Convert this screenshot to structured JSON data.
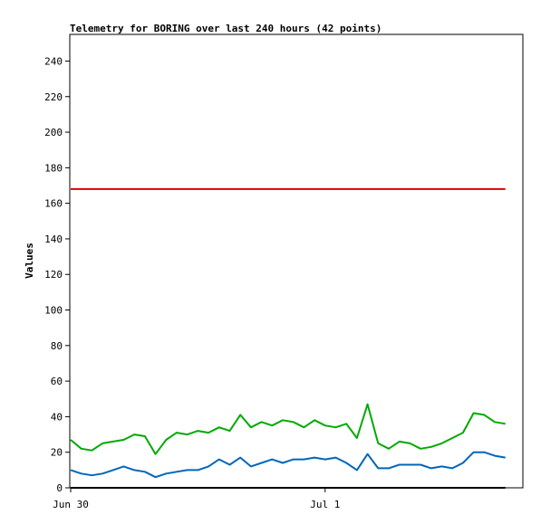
{
  "chart_data": {
    "type": "line",
    "title": "Telemetry for BORING over last 240 hours (42 points)",
    "xlabel": "",
    "ylabel": "Values",
    "ylim": [
      0,
      255
    ],
    "yticks": [
      0,
      20,
      40,
      60,
      80,
      100,
      120,
      140,
      160,
      180,
      200,
      220,
      240
    ],
    "xticks": [
      {
        "label": "Jun 30",
        "index": 0
      },
      {
        "label": "Jul 1",
        "index": 24
      }
    ],
    "grid": false,
    "legend": "none",
    "points": 42,
    "series": [
      {
        "color": "#dd0000",
        "values": [
          168,
          168,
          168,
          168,
          168,
          168,
          168,
          168,
          168,
          168,
          168,
          168,
          168,
          168,
          168,
          168,
          168,
          168,
          168,
          168,
          168,
          168,
          168,
          168,
          168,
          168,
          168,
          168,
          168,
          168,
          168,
          168,
          168,
          168,
          168,
          168,
          168,
          168,
          168,
          168,
          168,
          168
        ]
      },
      {
        "color": "#00aa00",
        "values": [
          27,
          22,
          21,
          25,
          26,
          27,
          30,
          29,
          19,
          27,
          31,
          30,
          32,
          31,
          34,
          32,
          41,
          34,
          37,
          35,
          38,
          37,
          34,
          38,
          35,
          34,
          36,
          28,
          47,
          25,
          22,
          26,
          25,
          22,
          23,
          25,
          28,
          31,
          42,
          41,
          37,
          36
        ]
      },
      {
        "color": "#0066bb",
        "values": [
          10,
          8,
          7,
          8,
          10,
          12,
          10,
          9,
          6,
          8,
          9,
          10,
          10,
          12,
          16,
          13,
          17,
          12,
          14,
          16,
          14,
          16,
          16,
          17,
          16,
          17,
          14,
          10,
          19,
          11,
          11,
          13,
          13,
          13,
          11,
          12,
          11,
          14,
          20,
          20,
          18,
          17
        ]
      },
      {
        "color": "#000000",
        "values": [
          0,
          0,
          0,
          0,
          0,
          0,
          0,
          0,
          0,
          0,
          0,
          0,
          0,
          0,
          0,
          0,
          0,
          0,
          0,
          0,
          0,
          0,
          0,
          0,
          0,
          0,
          0,
          0,
          0,
          0,
          0,
          0,
          0,
          0,
          0,
          0,
          0,
          0,
          0,
          0,
          0,
          0
        ]
      }
    ]
  }
}
